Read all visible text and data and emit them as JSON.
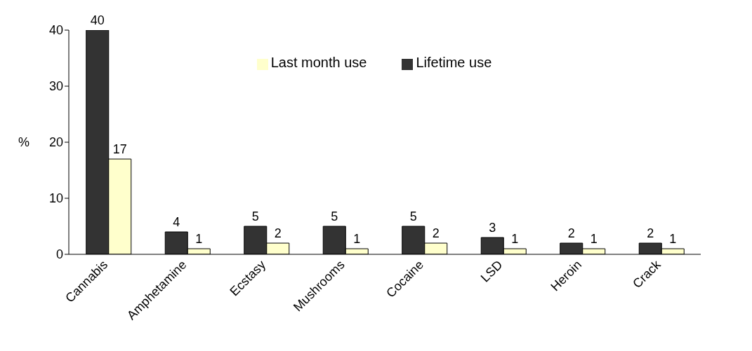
{
  "chart_data": {
    "type": "bar",
    "ylabel": "%",
    "categories": [
      "Cannabis",
      "Amphetamine",
      "Ecstasy",
      "Mushrooms",
      "Cocaine",
      "LSD",
      "Heroin",
      "Crack"
    ],
    "series": [
      {
        "name": "Lifetime use",
        "color": "#333333",
        "values": [
          40,
          4,
          5,
          5,
          5,
          3,
          2,
          2
        ]
      },
      {
        "name": "Last month use",
        "color": "#ffffcc",
        "values": [
          17,
          1,
          2,
          1,
          2,
          1,
          1,
          1
        ]
      }
    ],
    "ylim": [
      0,
      40
    ],
    "yticks": [
      0,
      10,
      20,
      30,
      40
    ],
    "grid": false,
    "legend": "top",
    "data_labels": true
  }
}
